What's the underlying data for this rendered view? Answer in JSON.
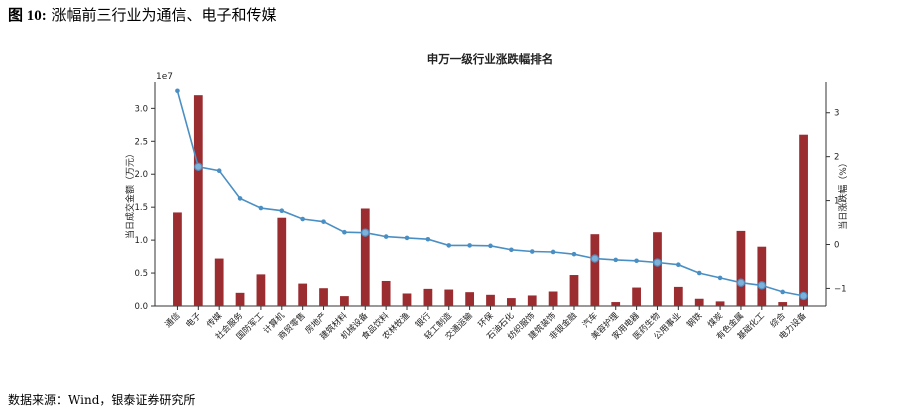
{
  "figure": {
    "label": "图 10:",
    "caption": "涨幅前三行业为通信、电子和传媒",
    "source": "数据来源：Wind，银泰证券研究所"
  },
  "colors": {
    "bar": "#9b2d30",
    "line": "#4a8fc4",
    "axis": "#333333"
  },
  "chart_data": {
    "type": "bar",
    "title": "申万一级行业涨跌幅排名",
    "ylabel": "当日成交金额（万元）",
    "y2label": "当日涨跌幅（%）",
    "y_offset_label": "1e7",
    "ylim": [
      0,
      3.4
    ],
    "y2lim": [
      -1.4,
      3.7
    ],
    "yticks": [
      "0.0",
      "0.5",
      "1.0",
      "1.5",
      "2.0",
      "2.5",
      "3.0"
    ],
    "y2ticks": [
      "−1",
      "0",
      "1",
      "2",
      "3"
    ],
    "grid": false,
    "categories": [
      "通信",
      "电子",
      "传媒",
      "社会服务",
      "国防军工",
      "计算机",
      "商贸零售",
      "房地产",
      "建筑材料",
      "机械设备",
      "食品饮料",
      "农林牧渔",
      "银行",
      "轻工制造",
      "交通运输",
      "环保",
      "石油石化",
      "纺织服饰",
      "建筑装饰",
      "非银金融",
      "汽车",
      "美容护理",
      "家用电器",
      "医药生物",
      "公用事业",
      "钢铁",
      "煤炭",
      "有色金属",
      "基础化工",
      "综合",
      "电力设备"
    ],
    "series": [
      {
        "name": "",
        "type": "bar",
        "axis": "left",
        "values": [
          1.42,
          3.2,
          0.72,
          0.2,
          0.48,
          1.34,
          0.34,
          0.27,
          0.15,
          1.48,
          0.38,
          0.19,
          0.26,
          0.25,
          0.21,
          0.17,
          0.12,
          0.16,
          0.22,
          0.47,
          1.09,
          0.06,
          0.28,
          1.12,
          0.29,
          0.11,
          0.07,
          1.14,
          0.9,
          0.06,
          2.6
        ]
      },
      {
        "name": "",
        "type": "line",
        "axis": "right",
        "values": [
          3.5,
          1.77,
          1.68,
          1.05,
          0.83,
          0.77,
          0.58,
          0.52,
          0.28,
          0.27,
          0.18,
          0.15,
          0.12,
          -0.02,
          -0.02,
          -0.03,
          -0.12,
          -0.16,
          -0.17,
          -0.22,
          -0.32,
          -0.35,
          -0.37,
          -0.41,
          -0.46,
          -0.65,
          -0.76,
          -0.87,
          -0.93,
          -1.08,
          -1.17
        ],
        "highlighted": [
          "电子",
          "机械设备",
          "汽车",
          "医药生物",
          "有色金属",
          "基础化工",
          "电力设备"
        ]
      }
    ]
  }
}
